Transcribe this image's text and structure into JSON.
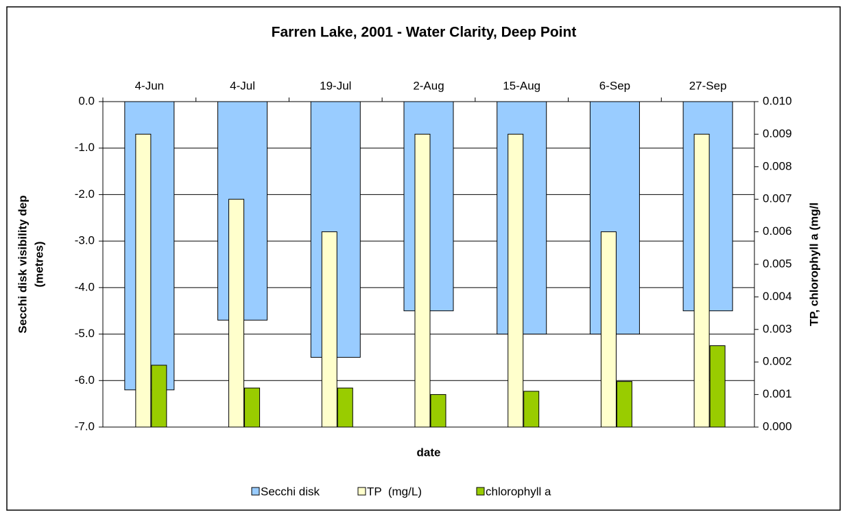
{
  "chart_data": {
    "type": "bar",
    "title": "Farren Lake, 2001 - Water Clarity, Deep Point",
    "x_label": "date",
    "y_label": [
      "Secchi disk visibility dep",
      "(metres)"
    ],
    "y2_label": "TP, chlorophyll a (mg/l",
    "categories": [
      "4-Jun",
      "4-Jul",
      "19-Jul",
      "2-Aug",
      "15-Aug",
      "6-Sep",
      "27-Sep"
    ],
    "series": [
      {
        "name": "Secchi disk",
        "color": "#99ccff",
        "values": [
          -6.2,
          -4.7,
          -5.5,
          -4.5,
          -5.0,
          -5.0,
          -4.5
        ]
      },
      {
        "name": "TP  (mg/L)",
        "color": "#ffffcc",
        "axis": "y2",
        "values": [
          0.009,
          0.007,
          0.006,
          0.009,
          0.009,
          0.006,
          0.009
        ]
      },
      {
        "name": "chlorophyll a",
        "color": "#99cc00",
        "axis": "y2",
        "values": [
          0.0019,
          0.0012,
          0.0012,
          0.001,
          0.0011,
          0.0014,
          0.0025
        ]
      }
    ],
    "ylim": [
      -7,
      0
    ],
    "yticks": [
      {
        "value": 0,
        "label": "0.0"
      },
      {
        "value": -1,
        "label": "-1.0"
      },
      {
        "value": -2,
        "label": "-2.0"
      },
      {
        "value": -3,
        "label": "-3.0"
      },
      {
        "value": -4,
        "label": "-4.0"
      },
      {
        "value": -5,
        "label": "-5.0"
      },
      {
        "value": -6,
        "label": "-6.0"
      },
      {
        "value": -7,
        "label": "-7.0"
      }
    ],
    "y2lim": [
      0,
      0.01
    ],
    "y2ticks": [
      {
        "value": 0,
        "label": "0.000"
      },
      {
        "value": 0.001,
        "label": "0.001"
      },
      {
        "value": 0.002,
        "label": "0.002"
      },
      {
        "value": 0.003,
        "label": "0.003"
      },
      {
        "value": 0.004,
        "label": "0.004"
      },
      {
        "value": 0.005,
        "label": "0.005"
      },
      {
        "value": 0.006,
        "label": "0.006"
      },
      {
        "value": 0.007,
        "label": "0.007"
      },
      {
        "value": 0.008,
        "label": "0.008"
      },
      {
        "value": 0.009,
        "label": "0.009"
      },
      {
        "value": 0.01,
        "label": "0.010"
      }
    ],
    "grid": true,
    "legend": "bottom"
  }
}
